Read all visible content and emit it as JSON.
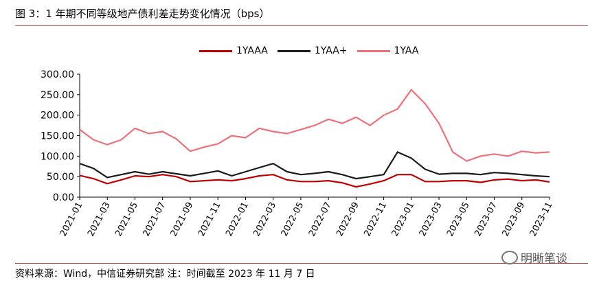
{
  "title": "图 3：1 年期不同等级地产债利差走势变化情况（bps）",
  "source": "资料来源：Wind，中信证券研究部  注：时间截至 2023 年 11 月 7 日",
  "watermark": "明晰笔谈",
  "chart_data": {
    "type": "line",
    "title": "图 3：1 年期不同等级地产债利差走势变化情况（bps）",
    "ylim": [
      0,
      300
    ],
    "yticks": [
      "0.00",
      "50.00",
      "100.00",
      "150.00",
      "200.00",
      "250.00",
      "300.00"
    ],
    "xlim": [
      "2021-01",
      "2023-11"
    ],
    "x_tick_labels": [
      "2021-01",
      "2021-03",
      "2021-05",
      "2021-07",
      "2021-09",
      "2021-11",
      "2022-01",
      "2022-03",
      "2022-05",
      "2022-07",
      "2022-09",
      "2022-11",
      "2023-01",
      "2023-03",
      "2023-05",
      "2023-07",
      "2023-09",
      "2023-11"
    ],
    "grid": false,
    "legend_position": "top",
    "x": [
      "2021-01",
      "2021-02",
      "2021-03",
      "2021-04",
      "2021-05",
      "2021-06",
      "2021-07",
      "2021-08",
      "2021-09",
      "2021-10",
      "2021-11",
      "2021-12",
      "2022-01",
      "2022-02",
      "2022-03",
      "2022-04",
      "2022-05",
      "2022-06",
      "2022-07",
      "2022-08",
      "2022-09",
      "2022-10",
      "2022-11",
      "2022-12",
      "2023-01",
      "2023-02",
      "2023-03",
      "2023-04",
      "2023-05",
      "2023-06",
      "2023-07",
      "2023-08",
      "2023-09",
      "2023-10",
      "2023-11"
    ],
    "series": [
      {
        "name": "1YAAA",
        "color": "#c00000",
        "values": [
          53,
          45,
          33,
          42,
          52,
          50,
          55,
          50,
          38,
          40,
          42,
          40,
          45,
          52,
          55,
          42,
          38,
          38,
          40,
          35,
          25,
          32,
          40,
          55,
          55,
          38,
          38,
          40,
          40,
          36,
          42,
          44,
          40,
          42,
          37
        ]
      },
      {
        "name": "1YAA+",
        "color": "#1a1a1a",
        "values": [
          82,
          70,
          48,
          55,
          62,
          56,
          62,
          57,
          52,
          58,
          64,
          52,
          62,
          72,
          82,
          62,
          55,
          58,
          62,
          55,
          45,
          50,
          55,
          110,
          95,
          68,
          56,
          58,
          58,
          55,
          60,
          58,
          55,
          52,
          50
        ]
      },
      {
        "name": "1YAA",
        "color": "#f0707a",
        "values": [
          165,
          140,
          128,
          140,
          168,
          155,
          160,
          142,
          112,
          122,
          130,
          150,
          145,
          168,
          160,
          155,
          165,
          175,
          190,
          180,
          195,
          175,
          200,
          215,
          262,
          228,
          180,
          110,
          88,
          100,
          105,
          100,
          112,
          108,
          110
        ]
      }
    ]
  }
}
